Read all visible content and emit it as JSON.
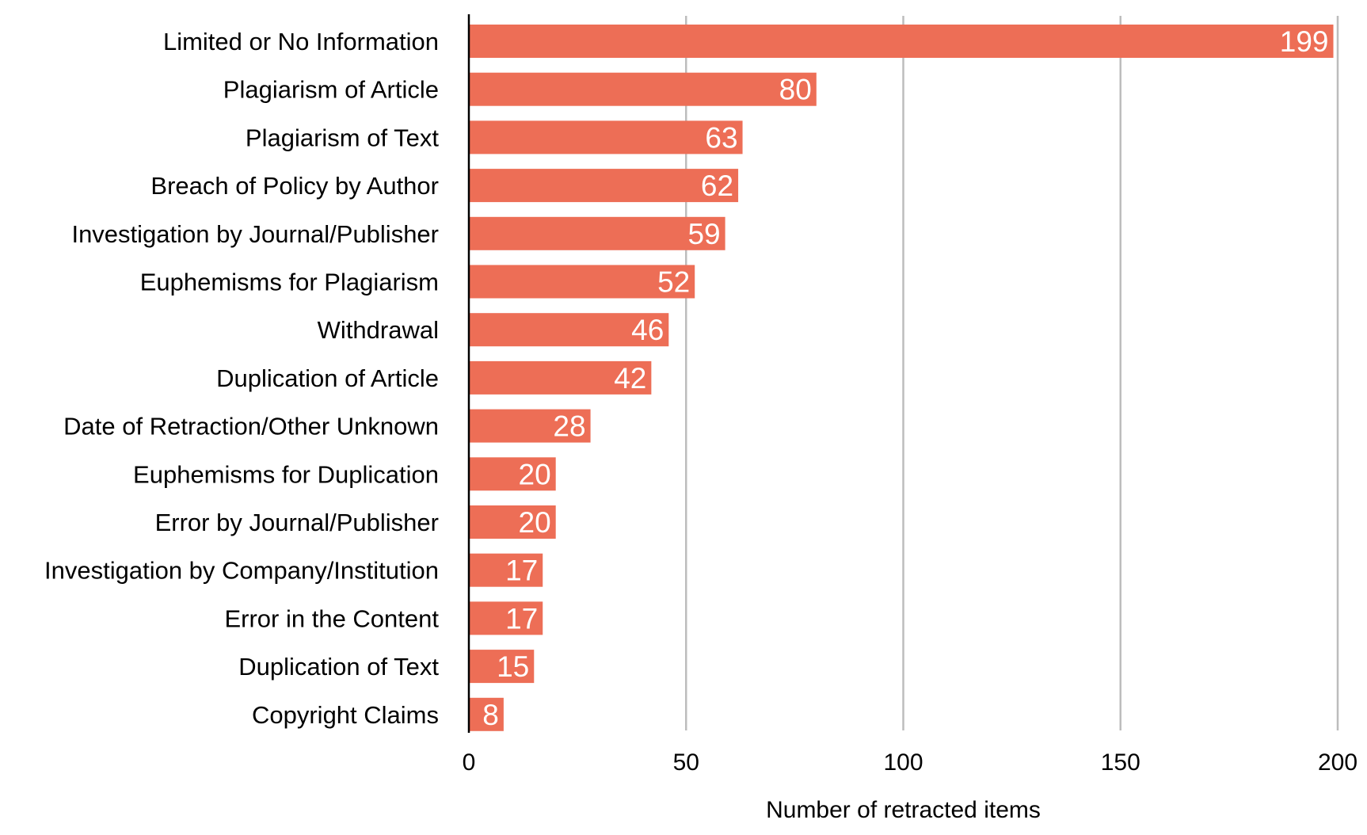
{
  "chart_data": {
    "type": "bar",
    "orientation": "horizontal",
    "categories": [
      "Limited or No Information",
      "Plagiarism of Article",
      "Plagiarism of Text",
      "Breach of Policy by Author",
      "Investigation by Journal/Publisher",
      "Euphemisms for Plagiarism",
      "Withdrawal",
      "Duplication of Article",
      "Date of Retraction/Other Unknown",
      "Euphemisms for Duplication",
      "Error by Journal/Publisher",
      "Investigation by Company/Institution",
      "Error in the Content",
      "Duplication of Text",
      "Copyright Claims"
    ],
    "values": [
      199,
      80,
      63,
      62,
      59,
      52,
      46,
      42,
      28,
      20,
      20,
      17,
      17,
      15,
      8
    ],
    "xlabel": "Number of retracted items",
    "ylabel": "",
    "xlim": [
      0,
      200
    ],
    "xticks": [
      0,
      50,
      100,
      150,
      200
    ],
    "grid": "vertical",
    "legend": "none",
    "bar_color": "#ED6E56",
    "grid_color": "#BDBDBD",
    "axis_color": "#000000",
    "value_label_color": "#FFFFFF"
  }
}
